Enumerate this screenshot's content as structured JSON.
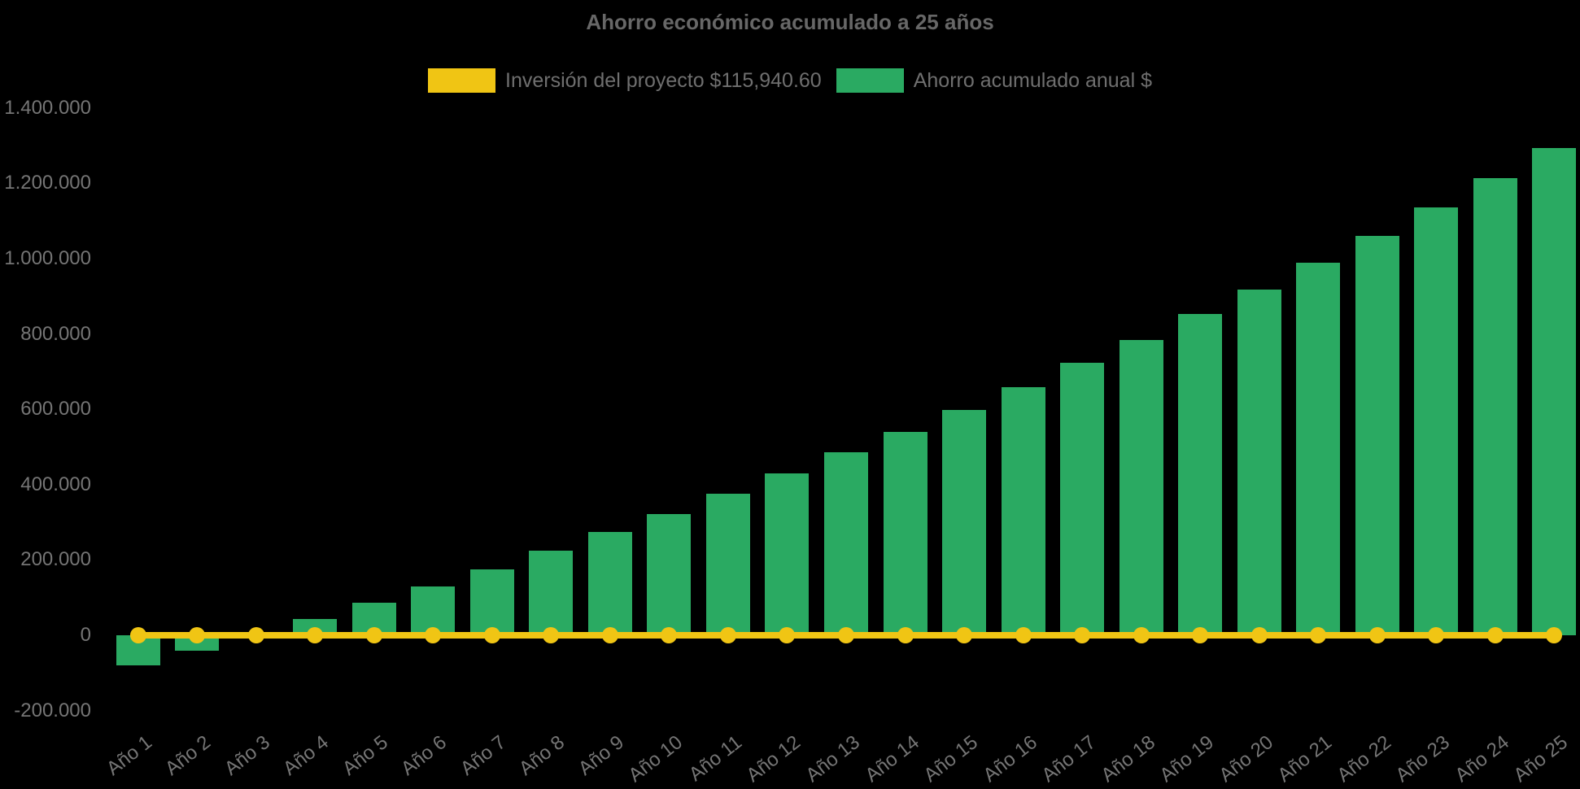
{
  "title": "Ahorro económico acumulado a 25 años",
  "colors": {
    "background": "#000000",
    "bar_green": "#2aaa62",
    "line_yellow": "#f0c514",
    "title_text": "#676767",
    "axis_text": "#757575",
    "legend_text": "#6f6f6f"
  },
  "legend": {
    "items": [
      {
        "label": "Inversión del proyecto $115,940.60",
        "color": "#f0c514",
        "series": "investment-line"
      },
      {
        "label": "Ahorro acumulado anual $",
        "color": "#2aaa62",
        "series": "savings-bars"
      }
    ]
  },
  "chart_data": {
    "type": "bar",
    "title": "Ahorro económico acumulado a 25 años",
    "xlabel": "",
    "ylabel": "",
    "categories": [
      "Año 1",
      "Año 2",
      "Año 3",
      "Año 4",
      "Año 5",
      "Año 6",
      "Año 7",
      "Año 8",
      "Año 9",
      "Año 10",
      "Año 11",
      "Año 12",
      "Año 13",
      "Año 14",
      "Año 15",
      "Año 16",
      "Año 17",
      "Año 18",
      "Año 19",
      "Año 20",
      "Año 21",
      "Año 22",
      "Año 23",
      "Año 24",
      "Año 25"
    ],
    "series": [
      {
        "name": "Ahorro acumulado anual $",
        "type": "bar",
        "color": "#2aaa62",
        "values": [
          -80000,
          -42000,
          0,
          43000,
          87000,
          130000,
          176000,
          224000,
          274000,
          322000,
          375000,
          430000,
          486000,
          540000,
          599000,
          659000,
          724000,
          784000,
          853000,
          918000,
          990000,
          1060000,
          1136000,
          1214000,
          1293000
        ]
      },
      {
        "name": "Inversión del proyecto $115,940.60",
        "type": "line",
        "color": "#f0c514",
        "values": [
          0,
          0,
          0,
          0,
          0,
          0,
          0,
          0,
          0,
          0,
          0,
          0,
          0,
          0,
          0,
          0,
          0,
          0,
          0,
          0,
          0,
          0,
          0,
          0,
          0
        ]
      }
    ],
    "investment_amount_label": "$115,940.60",
    "ylim": [
      -200000,
      1400000
    ],
    "ytick_values": [
      -200000,
      0,
      200000,
      400000,
      600000,
      800000,
      1000000,
      1200000,
      1400000
    ],
    "ytick_labels": [
      "-200.000",
      "0",
      "200.000",
      "400.000",
      "600.000",
      "800.000",
      "1.000.000",
      "1.200.000",
      "1.400.000"
    ],
    "grid": false,
    "legend_position": "top"
  }
}
